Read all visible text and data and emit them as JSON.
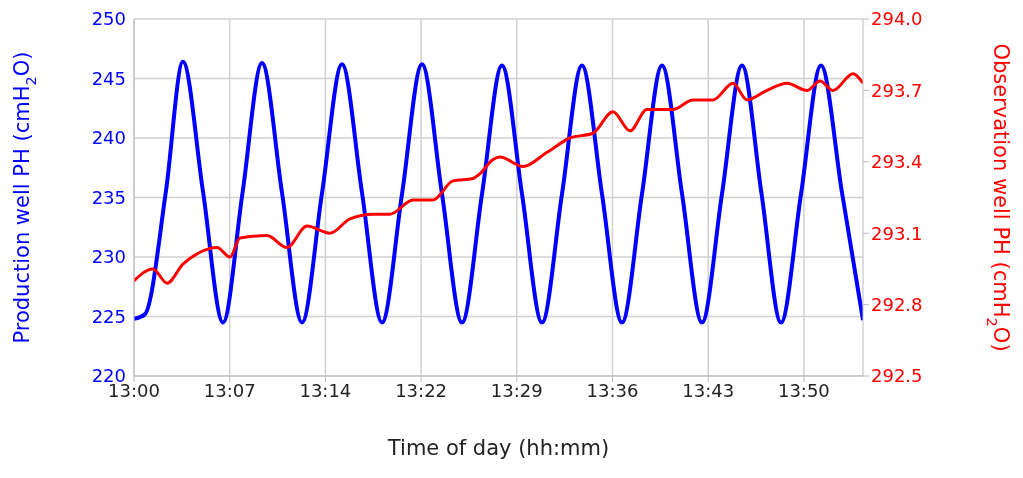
{
  "chart_data": {
    "type": "line",
    "xlabel": "Time of day (hh:mm)",
    "ylabel": "Production well PH (cmH$_{2}$O)",
    "y2label": "Observation well PH (cmH$_{2}$O)",
    "xlim": [
      13,
      13.9141
    ],
    "xticks": [
      {
        "value": 13,
        "label": "13:00"
      },
      {
        "value": 13.12,
        "label": "13:07"
      },
      {
        "value": 13.24,
        "label": "13:14"
      },
      {
        "value": 13.36,
        "label": "13:22"
      },
      {
        "value": 13.48,
        "label": "13:29"
      },
      {
        "value": 13.6,
        "label": "13:36"
      },
      {
        "value": 13.72,
        "label": "13:43"
      },
      {
        "value": 13.84,
        "label": "13:50"
      }
    ],
    "ylim": [
      220,
      250
    ],
    "yticks": [
      220,
      225,
      230,
      235,
      240,
      245,
      250
    ],
    "y2lim": [
      292.5,
      294.0
    ],
    "y2ticks": [
      {
        "value": 292.5,
        "label": "292.5"
      },
      {
        "value": 292.8,
        "label": "292.8"
      },
      {
        "value": 293.1,
        "label": "293.1"
      },
      {
        "value": 293.4,
        "label": "293.4"
      },
      {
        "value": 293.7,
        "label": "293.7"
      },
      {
        "value": 294.0,
        "label": "294.0"
      }
    ],
    "grid": true,
    "marker": "none",
    "line_style": "solid",
    "series": [
      {
        "color": "#0000ff",
        "axis": "y",
        "x": [
          13.0,
          13.0138,
          13.04,
          13.0614,
          13.0865,
          13.1116,
          13.1361,
          13.1605,
          13.1856,
          13.2107,
          13.2358,
          13.2608,
          13.2859,
          13.311,
          13.3361,
          13.3611,
          13.3862,
          13.4113,
          13.4364,
          13.4614,
          13.4865,
          13.5116,
          13.5367,
          13.5617,
          13.5868,
          13.6119,
          13.637,
          13.6621,
          13.6872,
          13.7122,
          13.7373,
          13.7624,
          13.7869,
          13.8113,
          13.8364,
          13.8614,
          13.8878,
          13.9141
        ],
        "values": [
          224.8,
          225.2,
          235.5,
          246.4,
          235.5,
          224.5,
          235.4,
          246.3,
          235.4,
          224.5,
          235.4,
          246.2,
          235.4,
          224.5,
          235.3,
          246.2,
          235.3,
          224.5,
          235.3,
          246.1,
          235.3,
          224.5,
          235.3,
          246.1,
          235.3,
          224.5,
          235.3,
          246.1,
          235.3,
          224.5,
          235.3,
          246.1,
          235.3,
          224.5,
          235.3,
          246.1,
          235.4,
          224.7
        ]
      },
      {
        "color": "#ff0000",
        "axis": "y2",
        "x": [
          13.0,
          13.0238,
          13.0414,
          13.0614,
          13.0828,
          13.1041,
          13.1204,
          13.1329,
          13.1668,
          13.1918,
          13.2169,
          13.2458,
          13.2708,
          13.2997,
          13.321,
          13.3498,
          13.3749,
          13.4,
          13.4251,
          13.4339,
          13.4502,
          13.4589,
          13.4878,
          13.5179,
          13.5467,
          13.5755,
          13.6006,
          13.6219,
          13.6432,
          13.6758,
          13.7009,
          13.726,
          13.7511,
          13.7686,
          13.7937,
          13.8188,
          13.8439,
          13.8602,
          13.8765,
          13.9016,
          13.9141
        ],
        "values": [
          292.9,
          292.95,
          292.89,
          292.97,
          293.02,
          293.04,
          293.0,
          293.08,
          293.09,
          293.04,
          293.13,
          293.1,
          293.16,
          293.18,
          293.18,
          293.24,
          293.24,
          293.32,
          293.33,
          293.35,
          293.41,
          293.42,
          293.38,
          293.44,
          293.5,
          293.52,
          293.61,
          293.53,
          293.62,
          293.62,
          293.66,
          293.66,
          293.73,
          293.66,
          293.7,
          293.73,
          293.7,
          293.74,
          293.7,
          293.77,
          293.73
        ]
      }
    ]
  }
}
